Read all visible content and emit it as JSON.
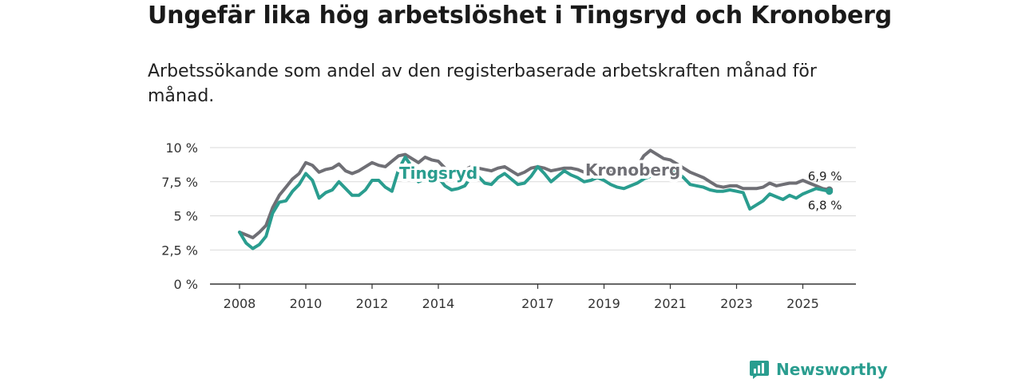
{
  "header": {
    "title": "Ungefär lika hög arbetslöshet i Tingsryd och Kronoberg",
    "subtitle": "Arbetssökande som andel av den registerbaserade arbetskraften månad för månad."
  },
  "brand": {
    "name": "Newsworthy",
    "color": "#2a9d8f"
  },
  "chart_data": {
    "type": "line",
    "title": "Ungefär lika hög arbetslöshet i Tingsryd och Kronoberg",
    "subtitle": "Arbetssökande som andel av den registerbaserade arbetskraften månad för månad.",
    "xlabel": "",
    "ylabel": "",
    "xlim": [
      2008,
      2026.4
    ],
    "ylim": [
      0,
      10
    ],
    "grid": true,
    "x_ticks": [
      2008,
      2010,
      2012,
      2014,
      2017,
      2019,
      2021,
      2023,
      2025
    ],
    "x_tick_labels": [
      "2008",
      "2010",
      "2012",
      "2014",
      "2017",
      "2019",
      "2021",
      "2023",
      "2025"
    ],
    "y_ticks": [
      0,
      2.5,
      5,
      7.5,
      10
    ],
    "y_tick_labels": [
      "0 %",
      "2,5 %",
      "5 %",
      "7,5 %",
      "10 %"
    ],
    "series": [
      {
        "name": "Kronoberg",
        "color": "#6f6f75",
        "end_label": "6,9 %",
        "x": [
          2008.0,
          2008.2,
          2008.4,
          2008.6,
          2008.8,
          2009.0,
          2009.2,
          2009.4,
          2009.6,
          2009.8,
          2010.0,
          2010.2,
          2010.4,
          2010.6,
          2010.8,
          2011.0,
          2011.2,
          2011.4,
          2011.6,
          2011.8,
          2012.0,
          2012.2,
          2012.4,
          2012.6,
          2012.8,
          2013.0,
          2013.2,
          2013.4,
          2013.6,
          2013.8,
          2014.0,
          2014.2,
          2014.4,
          2014.6,
          2014.8,
          2015.0,
          2015.2,
          2015.4,
          2015.6,
          2015.8,
          2016.0,
          2016.2,
          2016.4,
          2016.6,
          2016.8,
          2017.0,
          2017.2,
          2017.4,
          2017.6,
          2017.8,
          2018.0,
          2018.2,
          2018.4,
          2018.6,
          2018.8,
          2019.0,
          2019.2,
          2019.4,
          2019.6,
          2019.8,
          2020.0,
          2020.2,
          2020.4,
          2020.6,
          2020.8,
          2021.0,
          2021.2,
          2021.4,
          2021.6,
          2021.8,
          2022.0,
          2022.2,
          2022.4,
          2022.6,
          2022.8,
          2023.0,
          2023.2,
          2023.4,
          2023.6,
          2023.8,
          2024.0,
          2024.2,
          2024.4,
          2024.6,
          2024.8,
          2025.0,
          2025.2,
          2025.4,
          2025.6,
          2025.8
        ],
        "values": [
          3.8,
          3.6,
          3.4,
          3.8,
          4.3,
          5.6,
          6.5,
          7.1,
          7.7,
          8.1,
          8.9,
          8.7,
          8.2,
          8.4,
          8.5,
          8.8,
          8.3,
          8.1,
          8.3,
          8.6,
          8.9,
          8.7,
          8.6,
          9.0,
          9.4,
          9.5,
          9.2,
          8.9,
          9.3,
          9.1,
          9.0,
          8.5,
          8.3,
          8.3,
          8.4,
          8.6,
          8.5,
          8.4,
          8.3,
          8.5,
          8.6,
          8.3,
          8.0,
          8.2,
          8.5,
          8.6,
          8.5,
          8.3,
          8.4,
          8.5,
          8.5,
          8.4,
          8.2,
          8.1,
          8.3,
          8.4,
          8.2,
          8.0,
          8.0,
          8.3,
          8.6,
          9.4,
          9.8,
          9.5,
          9.2,
          9.1,
          8.8,
          8.5,
          8.2,
          8.0,
          7.8,
          7.5,
          7.2,
          7.1,
          7.2,
          7.2,
          7.0,
          7.0,
          7.0,
          7.1,
          7.4,
          7.2,
          7.3,
          7.4,
          7.4,
          7.6,
          7.4,
          7.2,
          7.0,
          6.9
        ]
      },
      {
        "name": "Tingsryd",
        "color": "#2a9d8f",
        "end_label": "6,8 %",
        "x": [
          2008.0,
          2008.2,
          2008.4,
          2008.6,
          2008.8,
          2009.0,
          2009.2,
          2009.4,
          2009.6,
          2009.8,
          2010.0,
          2010.2,
          2010.4,
          2010.6,
          2010.8,
          2011.0,
          2011.2,
          2011.4,
          2011.6,
          2011.8,
          2012.0,
          2012.2,
          2012.4,
          2012.6,
          2012.8,
          2013.0,
          2013.2,
          2013.4,
          2013.6,
          2013.8,
          2014.0,
          2014.2,
          2014.4,
          2014.6,
          2014.8,
          2015.0,
          2015.2,
          2015.4,
          2015.6,
          2015.8,
          2016.0,
          2016.2,
          2016.4,
          2016.6,
          2016.8,
          2017.0,
          2017.2,
          2017.4,
          2017.6,
          2017.8,
          2018.0,
          2018.2,
          2018.4,
          2018.6,
          2018.8,
          2019.0,
          2019.2,
          2019.4,
          2019.6,
          2019.8,
          2020.0,
          2020.2,
          2020.4,
          2020.6,
          2020.8,
          2021.0,
          2021.2,
          2021.4,
          2021.6,
          2021.8,
          2022.0,
          2022.2,
          2022.4,
          2022.6,
          2022.8,
          2023.0,
          2023.2,
          2023.4,
          2023.6,
          2023.8,
          2024.0,
          2024.2,
          2024.4,
          2024.6,
          2024.8,
          2025.0,
          2025.2,
          2025.4,
          2025.6,
          2025.8
        ],
        "values": [
          3.8,
          3.0,
          2.6,
          2.9,
          3.5,
          5.2,
          6.0,
          6.1,
          6.8,
          7.3,
          8.1,
          7.6,
          6.3,
          6.7,
          6.9,
          7.5,
          7.0,
          6.5,
          6.5,
          6.9,
          7.6,
          7.6,
          7.1,
          6.8,
          8.4,
          9.3,
          8.6,
          7.5,
          7.7,
          7.8,
          7.8,
          7.2,
          6.9,
          7.0,
          7.2,
          7.9,
          7.9,
          7.4,
          7.3,
          7.8,
          8.1,
          7.7,
          7.3,
          7.4,
          7.9,
          8.6,
          8.1,
          7.5,
          7.9,
          8.3,
          8.0,
          7.8,
          7.5,
          7.6,
          7.8,
          7.6,
          7.3,
          7.1,
          7.0,
          7.2,
          7.4,
          7.7,
          7.9,
          8.1,
          8.5,
          8.6,
          8.2,
          7.8,
          7.3,
          7.2,
          7.1,
          6.9,
          6.8,
          6.8,
          6.9,
          6.8,
          6.7,
          5.5,
          5.8,
          6.1,
          6.6,
          6.4,
          6.2,
          6.5,
          6.3,
          6.6,
          6.8,
          7.0,
          6.9,
          6.8
        ]
      }
    ],
    "inline_labels": [
      "Tingsryd",
      "Kronoberg"
    ]
  }
}
